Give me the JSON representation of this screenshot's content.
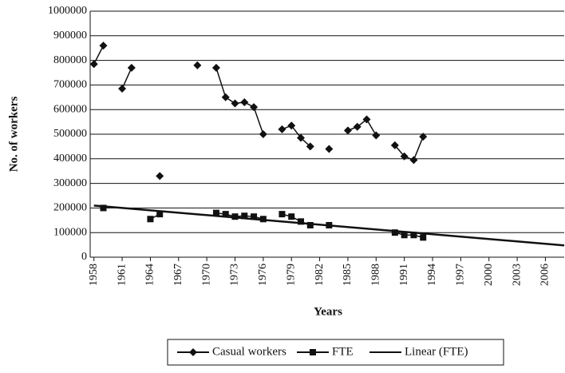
{
  "chart_data": {
    "type": "line",
    "x_label": "Years",
    "y_label": "No. of workers",
    "x": [
      1958,
      1959,
      1960,
      1961,
      1962,
      1963,
      1964,
      1965,
      1966,
      1967,
      1968,
      1969,
      1970,
      1971,
      1972,
      1973,
      1974,
      1975,
      1976,
      1977,
      1978,
      1979,
      1980,
      1981,
      1982,
      1983,
      1984,
      1985,
      1986,
      1987,
      1988,
      1989,
      1990,
      1991,
      1992,
      1993
    ],
    "series": [
      {
        "name": "Casual workers",
        "color": "#111111",
        "marker": "diamond",
        "values": [
          785000,
          860000,
          null,
          685000,
          770000,
          null,
          null,
          330000,
          null,
          null,
          null,
          780000,
          null,
          770000,
          650000,
          625000,
          630000,
          610000,
          500000,
          null,
          520000,
          535000,
          485000,
          450000,
          null,
          440000,
          null,
          515000,
          530000,
          560000,
          495000,
          null,
          455000,
          410000,
          395000,
          490000
        ]
      },
      {
        "name": "FTE",
        "color": "#111111",
        "marker": "square",
        "values": [
          null,
          200000,
          null,
          null,
          null,
          null,
          155000,
          175000,
          null,
          null,
          null,
          null,
          null,
          180000,
          175000,
          165000,
          168000,
          165000,
          155000,
          null,
          175000,
          165000,
          145000,
          130000,
          null,
          130000,
          null,
          null,
          null,
          null,
          null,
          null,
          100000,
          90000,
          90000,
          80000
        ]
      },
      {
        "name": "Linear (FTE)",
        "color": "#111111",
        "marker": "none",
        "x": [
          1958,
          2008
        ],
        "values": [
          210000,
          48000
        ]
      }
    ],
    "xlim": [
      1957.6,
      2008
    ],
    "xticks": [
      1958,
      1961,
      1964,
      1967,
      1970,
      1973,
      1976,
      1979,
      1982,
      1985,
      1988,
      1991,
      1994,
      1997,
      2000,
      2003,
      2006
    ],
    "ylim": [
      0,
      1000000
    ],
    "yticks": [
      0,
      100000,
      200000,
      300000,
      400000,
      500000,
      600000,
      700000,
      800000,
      900000,
      1000000
    ],
    "grid": true,
    "legend": "bottom"
  }
}
